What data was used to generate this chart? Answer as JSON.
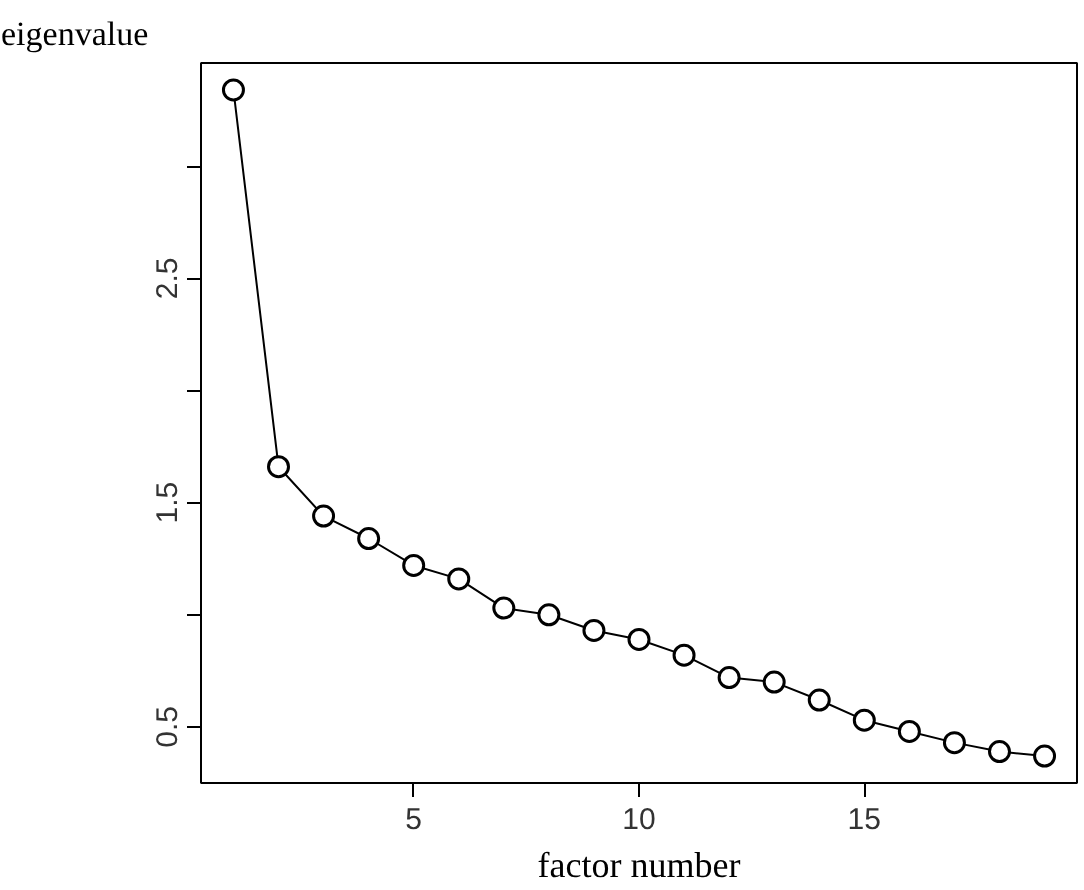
{
  "chart_data": {
    "type": "line",
    "ylabel": "eigenvalue",
    "xlabel": "factor number",
    "x": [
      1,
      2,
      3,
      4,
      5,
      6,
      7,
      8,
      9,
      10,
      11,
      12,
      13,
      14,
      15,
      16,
      17,
      18,
      19
    ],
    "series": [
      {
        "color": "#000000",
        "values": [
          3.34,
          1.66,
          1.44,
          1.34,
          1.22,
          1.16,
          1.03,
          1.0,
          0.93,
          0.89,
          0.82,
          0.72,
          0.7,
          0.62,
          0.53,
          0.48,
          0.43,
          0.39,
          0.37
        ]
      }
    ],
    "xlim": [
      0.28,
      19.72
    ],
    "ylim": [
      0.25,
      3.46
    ],
    "xticks": [
      5,
      10,
      15
    ],
    "yticks": [
      0.5,
      {
        "value": 1,
        "label": null
      },
      1.5,
      {
        "value": 2,
        "label": null
      },
      2.5,
      {
        "value": 3,
        "label": null
      }
    ],
    "grid": false,
    "marker": "circle",
    "line_style": "solid"
  }
}
